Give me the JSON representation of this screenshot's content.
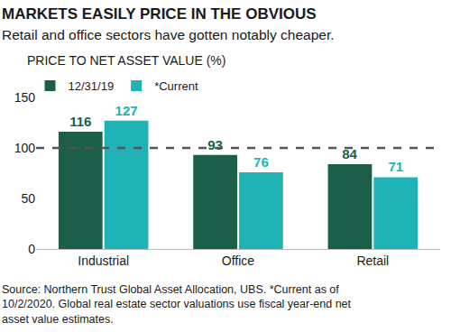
{
  "chart_data": {
    "type": "bar",
    "title": "MARKETS EASILY PRICE IN THE OBVIOUS",
    "subtitle": "Retail and office sectors have gotten notably cheaper.",
    "y_label": "PRICE TO NET ASSET VALUE (%)",
    "categories": [
      "Industrial",
      "Office",
      "Retail"
    ],
    "series": [
      {
        "name": "12/31/19",
        "color": "#1b5e49",
        "values": [
          116,
          93,
          84
        ]
      },
      {
        "name": "*Current",
        "color": "#1fb3b5",
        "values": [
          127,
          76,
          71
        ]
      }
    ],
    "ylim": [
      0,
      150
    ],
    "yticks": [
      0,
      50,
      100,
      150
    ],
    "reference_line": 100,
    "grid": false,
    "legend": "top left",
    "data_labels": true,
    "source": [
      "Source: Northern Trust Global Asset Allocation, UBS. *Current as of",
      "10/2/2020. Global real estate sector valuations use fiscal year-end net",
      "asset value estimates."
    ]
  }
}
